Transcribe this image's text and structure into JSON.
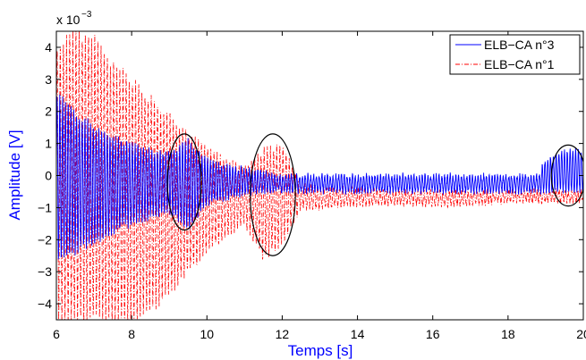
{
  "chart_data": {
    "type": "line",
    "title": "",
    "xlabel": "Temps [s]",
    "ylabel": "Amplitude [V]",
    "y_exponent_label": "x 10",
    "y_exponent_power": "−3",
    "xlim": [
      6,
      20
    ],
    "ylim": [
      -4.5,
      4.5
    ],
    "xticks": [
      6,
      8,
      10,
      12,
      14,
      16,
      18,
      20
    ],
    "yticks": [
      -4,
      -3,
      -2,
      -1,
      0,
      1,
      2,
      3,
      4
    ],
    "ytick_labels": [
      "−4",
      "−3",
      "−2",
      "−1",
      "0",
      "1",
      "2",
      "3",
      "4"
    ],
    "grid": false,
    "legend_position": "top-right",
    "series": [
      {
        "name": "ELB−CA n°3",
        "color": "#0000ff",
        "style": "solid",
        "envelope": {
          "t": [
            6.0,
            6.5,
            7.0,
            7.5,
            8.0,
            8.5,
            9.0,
            9.5,
            10.0,
            10.5,
            11.0,
            11.5,
            12.0,
            12.5,
            13.0,
            14.0,
            15.0,
            16.0,
            17.0,
            18.0,
            18.8,
            19.0,
            19.3,
            19.6,
            20.0
          ],
          "upper": [
            2.6,
            2.0,
            1.5,
            1.2,
            1.0,
            0.8,
            0.7,
            1.1,
            0.5,
            0.3,
            0.2,
            0.1,
            0.0,
            0.0,
            0.0,
            0.0,
            0.0,
            0.0,
            0.0,
            0.0,
            0.0,
            0.5,
            0.7,
            0.8,
            0.8
          ],
          "lower": [
            -2.6,
            -2.4,
            -2.1,
            -1.8,
            -1.5,
            -1.3,
            -1.1,
            -1.7,
            -0.9,
            -0.7,
            -0.6,
            -0.5,
            -0.5,
            -0.5,
            -0.5,
            -0.5,
            -0.5,
            -0.5,
            -0.5,
            -0.5,
            -0.5,
            -0.5,
            -0.5,
            -0.5,
            -0.5
          ]
        }
      },
      {
        "name": "ELB−CA n°1",
        "color": "#ff0000",
        "style": "dashdot",
        "envelope": {
          "t": [
            6.0,
            6.5,
            7.0,
            7.5,
            8.0,
            8.5,
            9.0,
            9.5,
            10.0,
            10.5,
            11.0,
            11.5,
            12.0,
            12.5,
            13.0,
            14.0,
            15.0,
            16.0,
            17.0,
            18.0,
            19.0,
            20.0
          ],
          "upper": [
            4.0,
            4.5,
            4.3,
            3.5,
            3.0,
            2.4,
            1.9,
            1.3,
            0.9,
            0.5,
            0.2,
            0.8,
            0.9,
            -0.3,
            -0.4,
            -0.4,
            -0.5,
            -0.5,
            -0.5,
            -0.5,
            -0.5,
            -0.5
          ],
          "lower": [
            -4.5,
            -4.5,
            -4.5,
            -4.5,
            -4.5,
            -4.2,
            -3.7,
            -3.0,
            -2.4,
            -1.9,
            -1.5,
            -2.6,
            -2.1,
            -1.0,
            -1.0,
            -0.9,
            -0.9,
            -0.9,
            -0.9,
            -0.8,
            -0.8,
            -0.8
          ]
        }
      }
    ],
    "annotations": [
      {
        "type": "ellipse",
        "cx": 9.4,
        "cy": -0.2,
        "rx": 0.45,
        "ry": 1.5
      },
      {
        "type": "ellipse",
        "cx": 11.75,
        "cy": -0.6,
        "rx": 0.6,
        "ry": 1.9
      },
      {
        "type": "ellipse",
        "cx": 19.6,
        "cy": 0.0,
        "rx": 0.45,
        "ry": 0.95
      }
    ]
  }
}
